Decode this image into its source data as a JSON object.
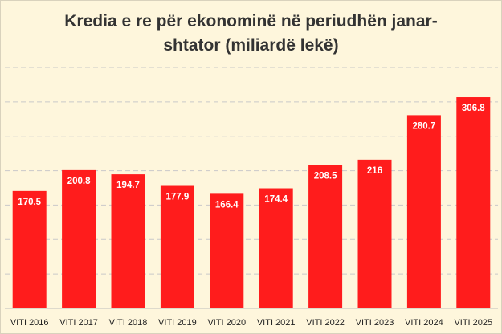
{
  "chart_data": {
    "type": "bar",
    "title_line1": "Kredia e re për ekonominë në periudhën janar-",
    "title_line2": "shtator (miliardë lekë)",
    "categories": [
      "VITI 2016",
      "VITI 2017",
      "VITI 2018",
      "VITI 2019",
      "VITI 2020",
      "VITI 2021",
      "VITI 2022",
      "VITI 2023",
      "VITI 2024",
      "VITI 2025"
    ],
    "values": [
      170.5,
      200.8,
      194.7,
      177.9,
      166.4,
      174.4,
      208.5,
      216,
      280.7,
      306.8
    ],
    "value_labels": [
      "170.5",
      "200.8",
      "194.7",
      "177.9",
      "166.4",
      "174.4",
      "208.5",
      "216",
      "280.7",
      "306.8"
    ],
    "ylim": [
      0,
      350
    ],
    "grid": true,
    "legend": "none",
    "bar_color": "#ff1c1c",
    "background_color": "#fef6dc",
    "grid_color": "#c9c9c9"
  }
}
